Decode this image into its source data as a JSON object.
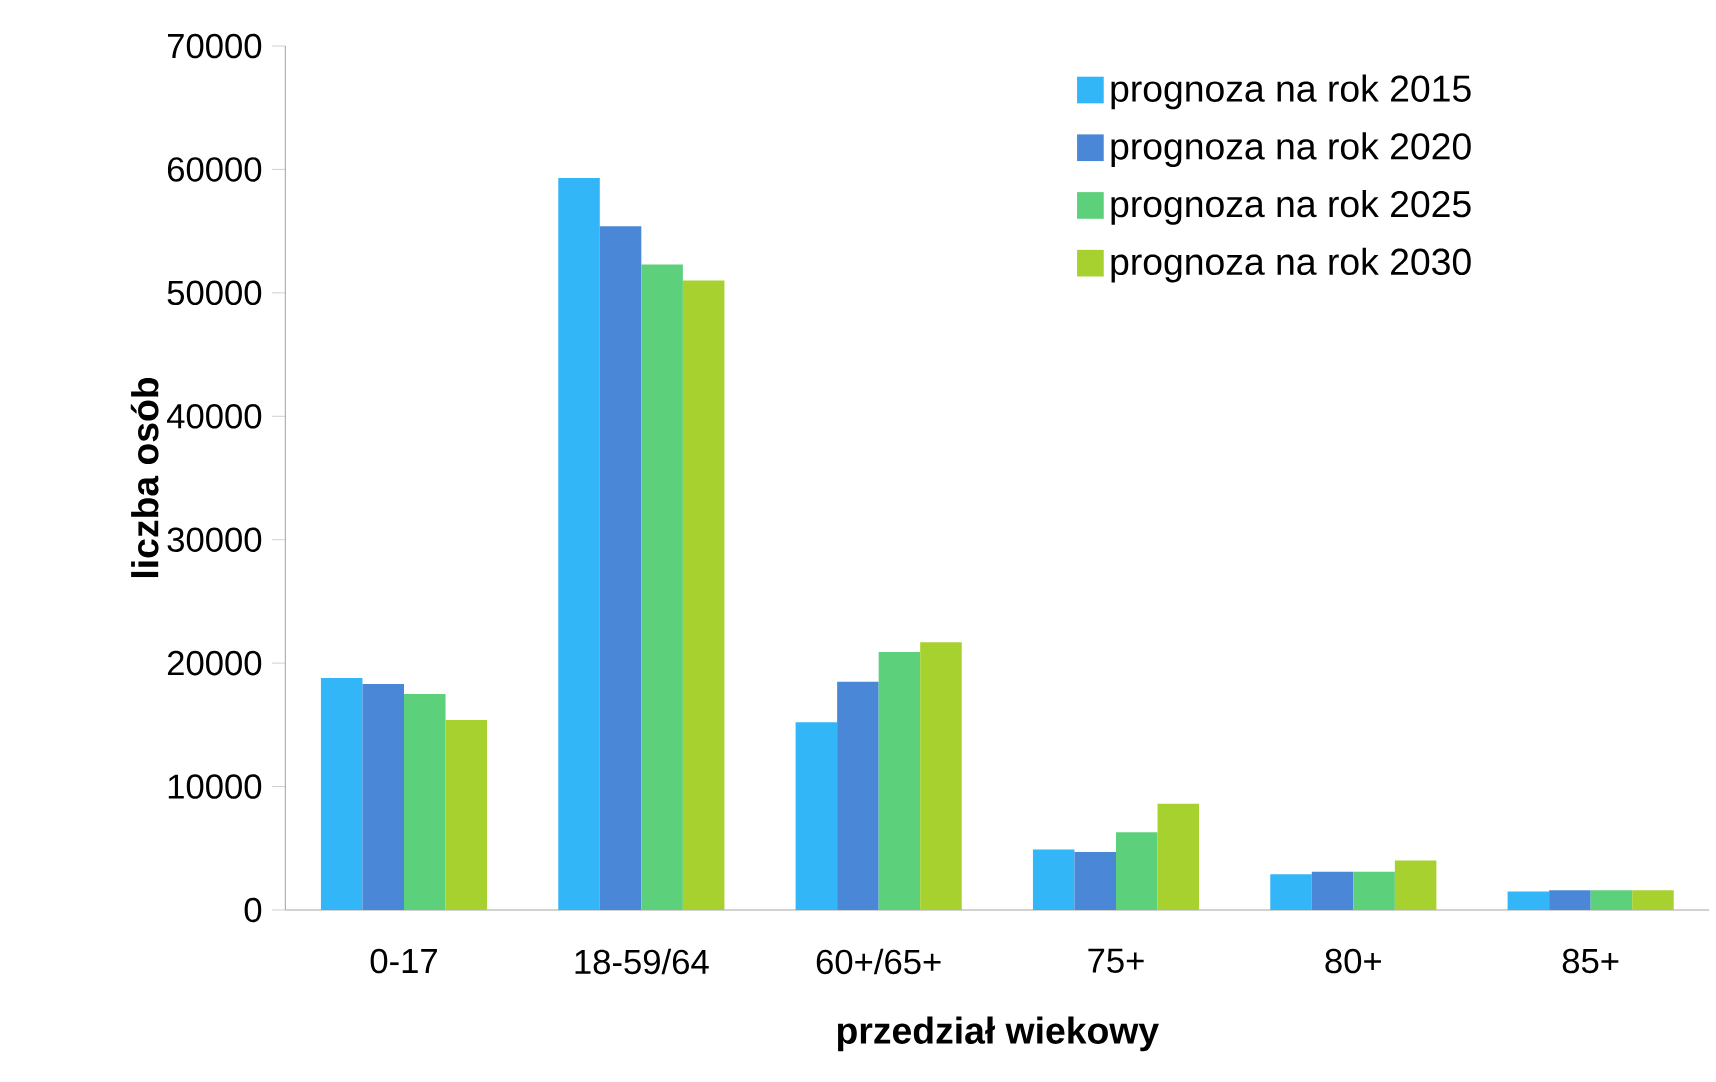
{
  "chart_data": {
    "type": "bar",
    "xlabel": "przedział wiekowy",
    "ylabel": "liczba osób",
    "categories": [
      "0-17",
      "18-59/64",
      "60+/65+",
      "75+",
      "80+",
      "85+"
    ],
    "series": [
      {
        "name": "prognoza na rok 2015",
        "color": "#33b6f7",
        "values": [
          18800,
          59300,
          15200,
          4900,
          2900,
          1500
        ]
      },
      {
        "name": "prognoza na rok 2020",
        "color": "#4a87d6",
        "values": [
          18300,
          55400,
          18500,
          4700,
          3100,
          1600
        ]
      },
      {
        "name": "prognoza na rok 2025",
        "color": "#5dd07b",
        "values": [
          17500,
          52300,
          20900,
          6300,
          3100,
          1600
        ]
      },
      {
        "name": "prognoza na rok 2030",
        "color": "#a7d12f",
        "values": [
          15400,
          51000,
          21700,
          8600,
          4000,
          1600
        ]
      }
    ],
    "ylim": [
      0,
      70000
    ],
    "yticks": [
      0,
      10000,
      20000,
      30000,
      40000,
      50000,
      60000,
      70000
    ],
    "grid": false,
    "legend": "top right"
  }
}
